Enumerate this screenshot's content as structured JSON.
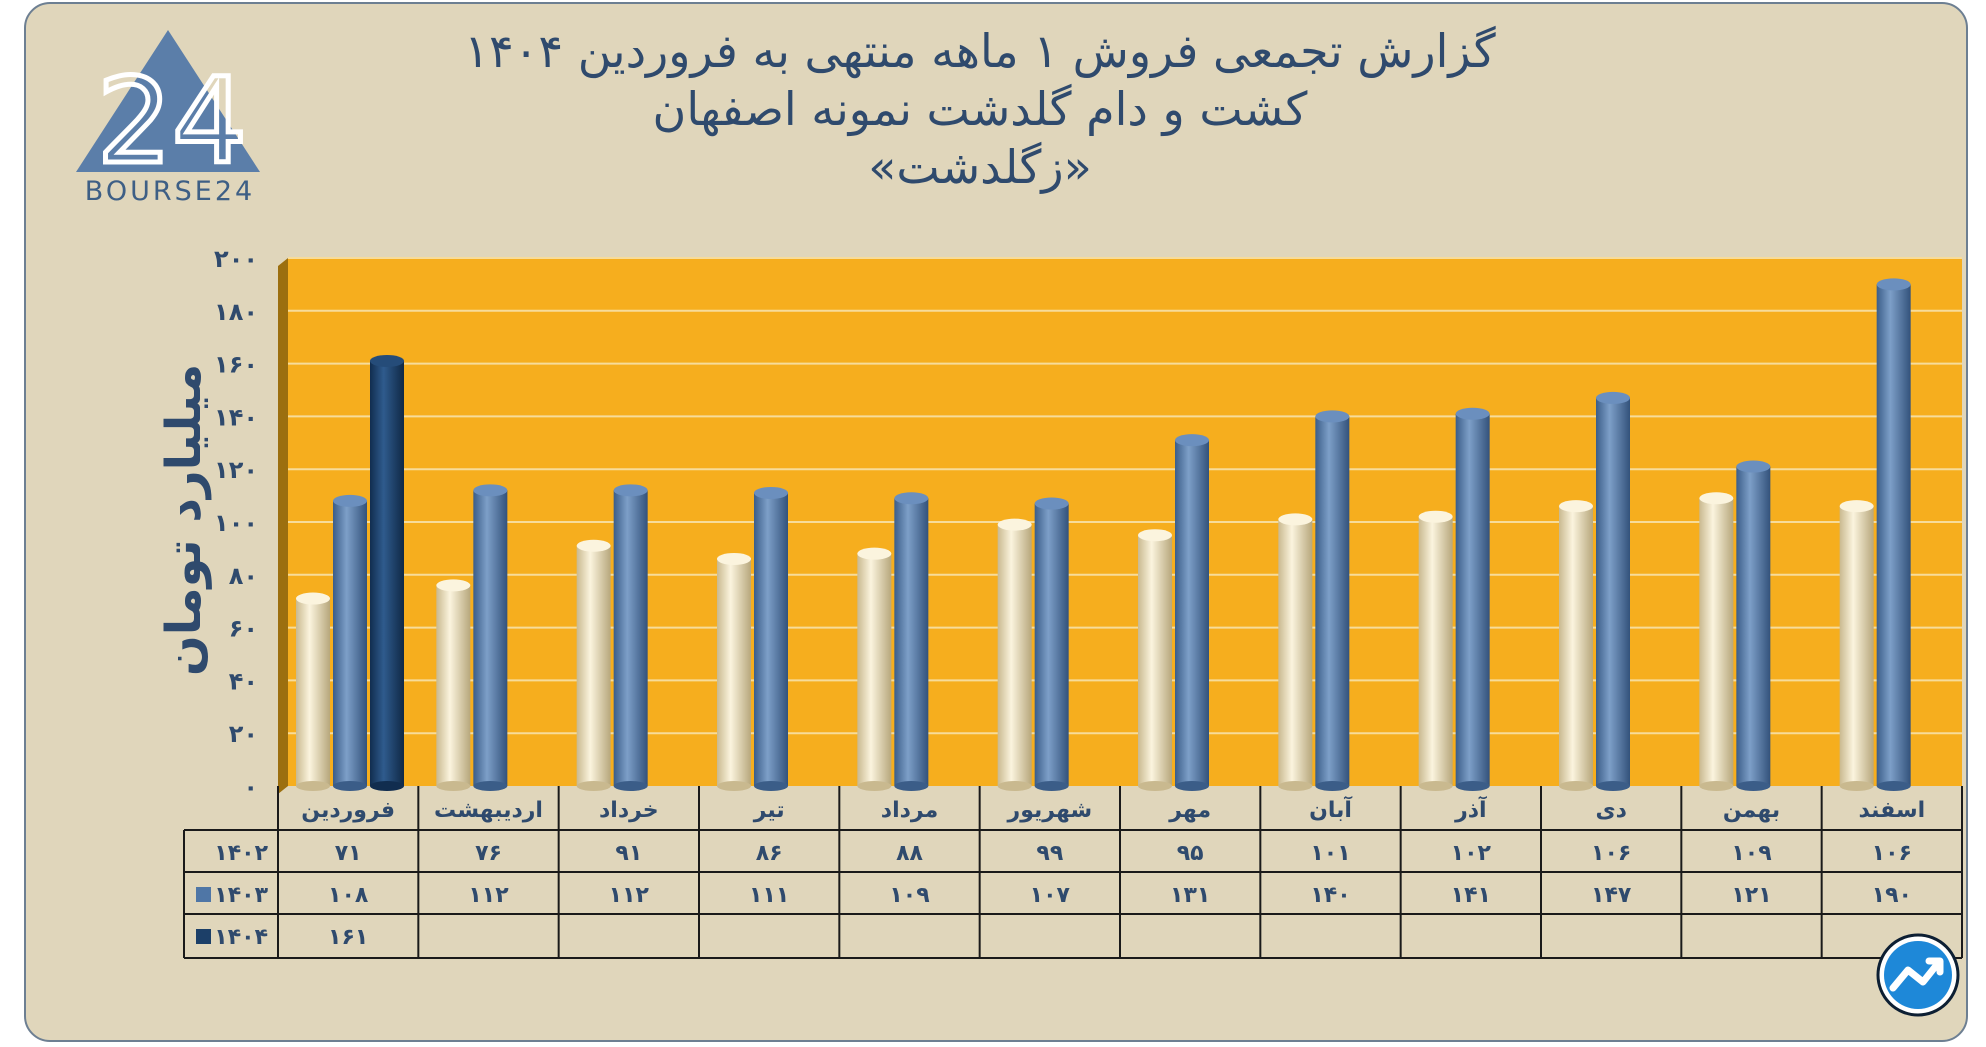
{
  "title_lines": [
    "گزارش تجمعی فروش ۱ ماهه منتهی به فروردین ۱۴۰۴",
    "کشت و دام گلدشت نمونه اصفهان",
    "«زگلدشت»"
  ],
  "logo": {
    "text": "BOURSE24",
    "mark": "24"
  },
  "colors": {
    "plot_background": "#f6ae1e",
    "series_1402": "#ece1c2",
    "series_1403": "#4f76a6",
    "series_1404": "#1c3f68",
    "text": "#2f4a6d"
  },
  "chart_data": {
    "type": "bar",
    "ylabel": "میلیارد تومان",
    "ylim": [
      0,
      200
    ],
    "yticks": [
      0,
      20,
      40,
      60,
      80,
      100,
      120,
      140,
      160,
      180,
      200
    ],
    "ytick_labels": [
      "۰",
      "۲۰",
      "۴۰",
      "۶۰",
      "۸۰",
      "۱۰۰",
      "۱۲۰",
      "۱۴۰",
      "۱۶۰",
      "۱۸۰",
      "۲۰۰"
    ],
    "grid": true,
    "categories": [
      "فروردین",
      "اردیبهشت",
      "خرداد",
      "تیر",
      "مرداد",
      "شهریور",
      "مهر",
      "آبان",
      "آذر",
      "دی",
      "بهمن",
      "اسفند"
    ],
    "series": [
      {
        "name": "۱۴۰۲",
        "values": [
          71,
          76,
          91,
          86,
          88,
          99,
          95,
          101,
          102,
          106,
          109,
          106
        ],
        "labels": [
          "۷۱",
          "۷۶",
          "۹۱",
          "۸۶",
          "۸۸",
          "۹۹",
          "۹۵",
          "۱۰۱",
          "۱۰۲",
          "۱۰۶",
          "۱۰۹",
          "۱۰۶"
        ]
      },
      {
        "name": "۱۴۰۳",
        "values": [
          108,
          112,
          112,
          111,
          109,
          107,
          131,
          140,
          141,
          147,
          121,
          190
        ],
        "labels": [
          "۱۰۸",
          "۱۱۲",
          "۱۱۲",
          "۱۱۱",
          "۱۰۹",
          "۱۰۷",
          "۱۳۱",
          "۱۴۰",
          "۱۴۱",
          "۱۴۷",
          "۱۲۱",
          "۱۹۰"
        ]
      },
      {
        "name": "۱۴۰۴",
        "values": [
          161,
          null,
          null,
          null,
          null,
          null,
          null,
          null,
          null,
          null,
          null,
          null
        ],
        "labels": [
          "۱۶۱",
          "",
          "",
          "",
          "",
          "",
          "",
          "",
          "",
          "",
          "",
          ""
        ]
      }
    ],
    "data_table": true
  }
}
